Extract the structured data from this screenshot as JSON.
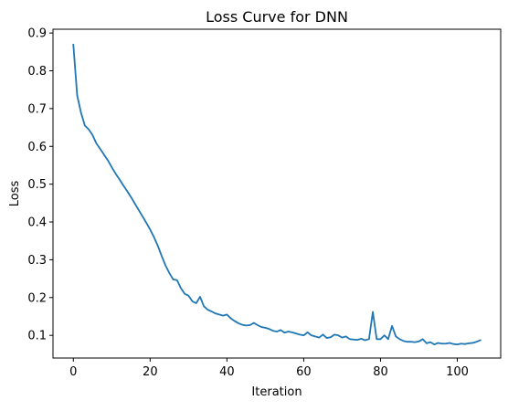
{
  "chart_data": {
    "type": "line",
    "title": "Loss Curve for DNN",
    "xlabel": "Iteration",
    "ylabel": "Loss",
    "xlim": [
      -5.3,
      111.3
    ],
    "ylim": [
      0.04,
      0.91
    ],
    "xticks": [
      0,
      20,
      40,
      60,
      80,
      100
    ],
    "yticks": [
      0.1,
      0.2,
      0.3,
      0.4,
      0.5,
      0.6,
      0.7,
      0.8,
      0.9
    ],
    "grid": false,
    "legend": "none",
    "series": [
      {
        "color": "#1f77b4",
        "x": [
          0,
          1,
          2,
          3,
          4,
          5,
          6,
          7,
          8,
          9,
          10,
          11,
          12,
          13,
          14,
          15,
          16,
          17,
          18,
          19,
          20,
          21,
          22,
          23,
          24,
          25,
          26,
          27,
          28,
          29,
          30,
          31,
          32,
          33,
          34,
          35,
          36,
          37,
          38,
          39,
          40,
          41,
          42,
          43,
          44,
          45,
          46,
          47,
          48,
          49,
          50,
          51,
          52,
          53,
          54,
          55,
          56,
          57,
          58,
          59,
          60,
          61,
          62,
          63,
          64,
          65,
          66,
          67,
          68,
          69,
          70,
          71,
          72,
          73,
          74,
          75,
          76,
          77,
          78,
          79,
          80,
          81,
          82,
          83,
          84,
          85,
          86,
          87,
          88,
          89,
          90,
          91,
          92,
          93,
          94,
          95,
          96,
          97,
          98,
          99,
          100,
          101,
          102,
          103,
          104,
          105,
          106
        ],
        "y": [
          0.869,
          0.735,
          0.689,
          0.655,
          0.645,
          0.63,
          0.608,
          0.593,
          0.578,
          0.563,
          0.545,
          0.528,
          0.513,
          0.497,
          0.482,
          0.466,
          0.449,
          0.432,
          0.415,
          0.398,
          0.38,
          0.36,
          0.337,
          0.31,
          0.285,
          0.265,
          0.248,
          0.246,
          0.225,
          0.21,
          0.205,
          0.19,
          0.185,
          0.202,
          0.177,
          0.168,
          0.163,
          0.158,
          0.155,
          0.152,
          0.155,
          0.145,
          0.138,
          0.132,
          0.128,
          0.126,
          0.127,
          0.133,
          0.127,
          0.122,
          0.12,
          0.117,
          0.112,
          0.11,
          0.114,
          0.107,
          0.11,
          0.108,
          0.105,
          0.102,
          0.1,
          0.108,
          0.1,
          0.097,
          0.094,
          0.102,
          0.093,
          0.095,
          0.102,
          0.1,
          0.094,
          0.097,
          0.09,
          0.089,
          0.088,
          0.091,
          0.087,
          0.09,
          0.162,
          0.09,
          0.09,
          0.1,
          0.09,
          0.125,
          0.097,
          0.09,
          0.085,
          0.083,
          0.083,
          0.082,
          0.084,
          0.09,
          0.079,
          0.082,
          0.076,
          0.08,
          0.078,
          0.078,
          0.08,
          0.077,
          0.076,
          0.078,
          0.077,
          0.079,
          0.08,
          0.083,
          0.087
        ]
      }
    ]
  }
}
